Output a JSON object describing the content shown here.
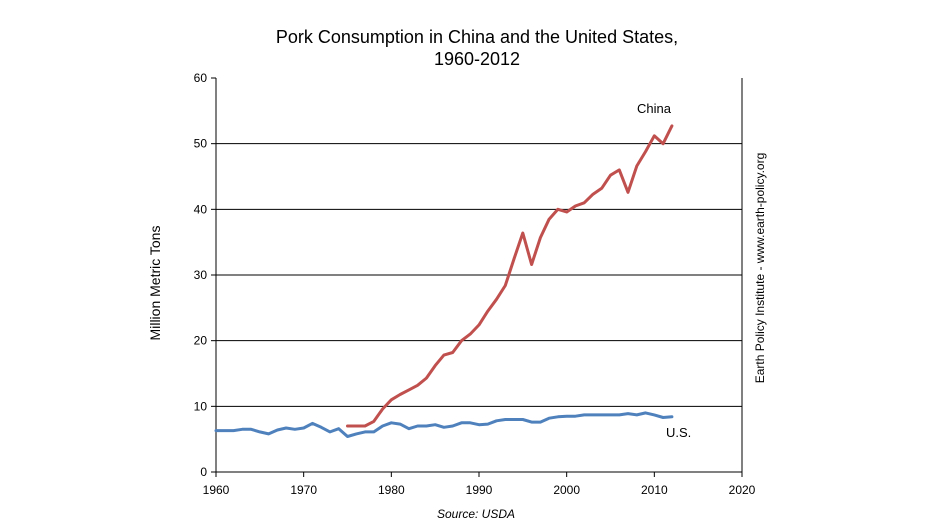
{
  "chart_data": {
    "type": "line",
    "title": "Pork Consumption in China and the United States,",
    "subtitle": "1960-2012",
    "ylabel": "Million Metric Tons",
    "xlabel": "",
    "xlim": [
      1960,
      2020
    ],
    "ylim": [
      0,
      60
    ],
    "x_ticks": [
      1960,
      1970,
      1980,
      1990,
      2000,
      2010,
      2020
    ],
    "y_ticks": [
      0,
      10,
      20,
      30,
      40,
      50,
      60
    ],
    "grid": true,
    "source": "Source: USDA",
    "watermark": "Earth Policy Institute - www.earth-policy.org",
    "series": [
      {
        "name": "China",
        "color": "#c0504d",
        "x": [
          1975,
          1976,
          1977,
          1978,
          1979,
          1980,
          1981,
          1982,
          1983,
          1984,
          1985,
          1986,
          1987,
          1988,
          1989,
          1990,
          1991,
          1992,
          1993,
          1994,
          1995,
          1996,
          1997,
          1998,
          1999,
          2000,
          2001,
          2002,
          2003,
          2004,
          2005,
          2006,
          2007,
          2008,
          2009,
          2010,
          2011,
          2012
        ],
        "values": [
          7.0,
          7.0,
          7.0,
          7.7,
          9.6,
          11.0,
          11.8,
          12.5,
          13.2,
          14.3,
          16.2,
          17.8,
          18.2,
          20.0,
          21.0,
          22.4,
          24.5,
          26.3,
          28.4,
          32.5,
          36.4,
          31.6,
          35.7,
          38.5,
          40.0,
          39.6,
          40.5,
          41.0,
          42.3,
          43.2,
          45.2,
          46.0,
          42.6,
          46.6,
          48.8,
          51.2,
          50.0,
          52.7
        ]
      },
      {
        "name": "U.S.",
        "color": "#4f81bd",
        "x": [
          1960,
          1961,
          1962,
          1963,
          1964,
          1965,
          1966,
          1967,
          1968,
          1969,
          1970,
          1971,
          1972,
          1973,
          1974,
          1975,
          1976,
          1977,
          1978,
          1979,
          1980,
          1981,
          1982,
          1983,
          1984,
          1985,
          1986,
          1987,
          1988,
          1989,
          1990,
          1991,
          1992,
          1993,
          1994,
          1995,
          1996,
          1997,
          1998,
          1999,
          2000,
          2001,
          2002,
          2003,
          2004,
          2005,
          2006,
          2007,
          2008,
          2009,
          2010,
          2011,
          2012
        ],
        "values": [
          6.3,
          6.3,
          6.3,
          6.5,
          6.5,
          6.1,
          5.8,
          6.4,
          6.7,
          6.5,
          6.7,
          7.4,
          6.8,
          6.1,
          6.6,
          5.4,
          5.8,
          6.1,
          6.1,
          7.0,
          7.5,
          7.3,
          6.6,
          7.0,
          7.0,
          7.2,
          6.8,
          7.0,
          7.5,
          7.5,
          7.2,
          7.3,
          7.8,
          8.0,
          8.0,
          8.0,
          7.6,
          7.6,
          8.2,
          8.4,
          8.5,
          8.5,
          8.7,
          8.7,
          8.7,
          8.7,
          8.7,
          8.9,
          8.7,
          9.0,
          8.7,
          8.3,
          8.4
        ]
      }
    ]
  }
}
